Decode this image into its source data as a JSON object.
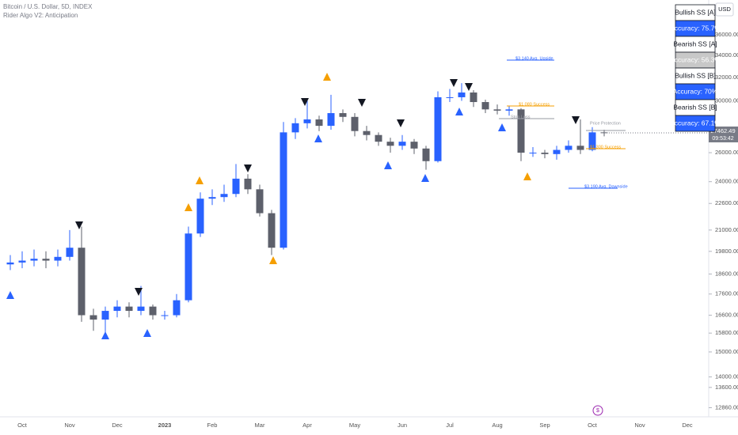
{
  "header": {
    "symbol": "Bitcoin / U.S. Dollar, 5D, INDEX",
    "indicator": "Rider Algo V2: Anticipation",
    "currency": "USD"
  },
  "stats_table": [
    {
      "label": "Bullish SS [A]",
      "accuracy": "Accuracy: 75.7%"
    },
    {
      "label": "Bearish SS [A]",
      "accuracy": "Accuracy: 56.3%"
    },
    {
      "label": "Bullish SS [B]",
      "accuracy": "Accuracy: 70%"
    },
    {
      "label": "Bearish SS [B]",
      "accuracy": "Accuracy: 67.1%"
    }
  ],
  "chart_data": {
    "type": "candlestick",
    "categories": [
      null,
      "Oct",
      null,
      null,
      null,
      "Nov",
      null,
      null,
      null,
      "Dec",
      null,
      null,
      null,
      "2023",
      null,
      null,
      null,
      "Feb",
      null,
      null,
      null,
      "Mar",
      null,
      null,
      null,
      "Apr",
      null,
      null,
      null,
      "May",
      null,
      null,
      null,
      "Jun",
      null,
      null,
      null,
      "Jul",
      null,
      null,
      null,
      "Aug",
      null,
      null,
      null,
      "Sep",
      null,
      null,
      null,
      "Oct",
      null,
      null,
      null,
      "Nov",
      null,
      null,
      null,
      "Dec"
    ],
    "open": [
      19100,
      19200,
      19300,
      19400,
      19300,
      19500,
      20000,
      16600,
      16400,
      16800,
      17000,
      16800,
      17000,
      16600,
      16600,
      17300,
      20800,
      22900,
      23000,
      23200,
      24200,
      23500,
      22000,
      20000,
      27500,
      28200,
      28500,
      28000,
      29000,
      28700,
      27600,
      27300,
      26800,
      26500,
      26800,
      26300,
      25400,
      30300,
      30300,
      30700,
      29900,
      29300,
      29200,
      29300,
      26000,
      26000,
      25900,
      26200,
      26500,
      26200,
      27500,
      null,
      null,
      null,
      null,
      null,
      null,
      null
    ],
    "high": [
      19600,
      19800,
      19900,
      19800,
      19900,
      21000,
      21200,
      16900,
      17000,
      17300,
      17200,
      18000,
      17100,
      16800,
      17600,
      21200,
      23300,
      23500,
      23800,
      25200,
      24500,
      23800,
      22200,
      28300,
      28600,
      30000,
      28800,
      30500,
      29300,
      29000,
      28000,
      27500,
      27100,
      27300,
      27000,
      26500,
      30800,
      31000,
      31500,
      30900,
      30100,
      29700,
      29600,
      29400,
      26400,
      26200,
      26500,
      26900,
      28500,
      27900,
      27700,
      null,
      null,
      null,
      null,
      null,
      null,
      null
    ],
    "low": [
      18800,
      18900,
      19000,
      18900,
      19000,
      19300,
      16300,
      15900,
      15800,
      16500,
      16500,
      16600,
      16400,
      16400,
      16500,
      17200,
      20600,
      22500,
      22700,
      23000,
      23200,
      21800,
      19600,
      19900,
      27000,
      27800,
      27600,
      27700,
      28300,
      27200,
      26900,
      26500,
      26000,
      26200,
      25900,
      24800,
      25300,
      29900,
      30000,
      29500,
      29000,
      28900,
      28800,
      25400,
      25700,
      25600,
      25500,
      26000,
      25900,
      26100,
      27200,
      null,
      null,
      null,
      null,
      null,
      null,
      null
    ],
    "close": [
      19200,
      19300,
      19400,
      19300,
      19500,
      20000,
      16600,
      16400,
      16800,
      17000,
      16800,
      17000,
      16600,
      16600,
      17300,
      20800,
      22900,
      23000,
      23200,
      24200,
      23500,
      22000,
      20000,
      27500,
      28200,
      28500,
      28000,
      29000,
      28700,
      27600,
      27300,
      26800,
      26500,
      26800,
      26300,
      25400,
      30300,
      30300,
      30700,
      29900,
      29300,
      29200,
      29300,
      26000,
      26000,
      25900,
      26200,
      26500,
      26200,
      27500,
      27462.49,
      null,
      null,
      null,
      null,
      null,
      null,
      null
    ],
    "up_color": "#2962ff",
    "down_color": "#5d606b",
    "log_scale": true,
    "ylim": [
      12540,
      39630
    ],
    "yticks": [
      {
        "value": 36000,
        "label": "36000.00"
      },
      {
        "value": 34000,
        "label": "34000.00"
      },
      {
        "value": 32000,
        "label": "32000.00"
      },
      {
        "value": 30000,
        "label": "30000.00"
      },
      {
        "value": 26000,
        "label": "26000.00"
      },
      {
        "value": 24000,
        "label": "24000.00"
      },
      {
        "value": 22600,
        "label": "22600.00"
      },
      {
        "value": 21000,
        "label": "21000.00"
      },
      {
        "value": 19800,
        "label": "19800.00"
      },
      {
        "value": 18600,
        "label": "18600.00"
      },
      {
        "value": 17600,
        "label": "17600.00"
      },
      {
        "value": 16600,
        "label": "16600.00"
      },
      {
        "value": 15800,
        "label": "15800.00"
      },
      {
        "value": 15000,
        "label": "15000.00"
      },
      {
        "value": 14000,
        "label": "14000.00"
      },
      {
        "value": 13600,
        "label": "13600.00"
      },
      {
        "value": 12860,
        "label": "12860.00"
      }
    ],
    "last_price": 27462.49,
    "countdown": "09:53:42",
    "annotations": [
      "$3,140 Avg. Upside",
      "$3,190 Avg. Downside",
      "$1,080 Success",
      "$1,300 Success",
      "Stop Loss",
      "Price Protection"
    ]
  }
}
